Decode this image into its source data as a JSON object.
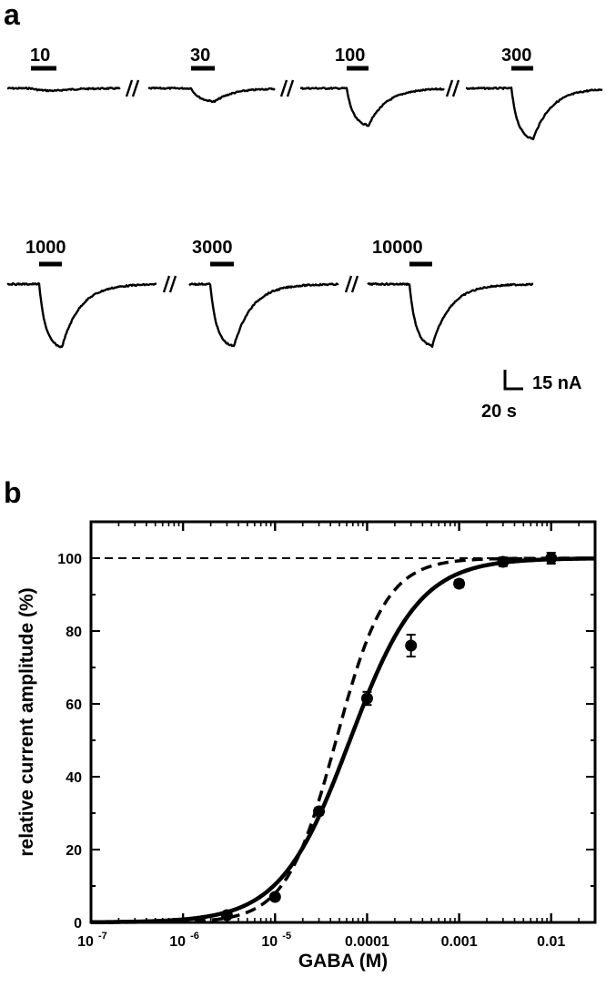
{
  "panel_a": {
    "label": "a",
    "concentrations": [
      "10",
      "30",
      "100",
      "300",
      "1000",
      "3000",
      "10000"
    ],
    "peak_amplitude_nA": [
      2,
      11,
      30,
      41,
      51,
      50,
      50
    ],
    "scale_bar": {
      "current_label": "15 nA",
      "time_label": "20 s"
    }
  },
  "panel_b": {
    "label": "b",
    "chart_data": {
      "type": "scatter",
      "xlabel": "GABA (M)",
      "ylabel": "relative current amplitude (%)",
      "xscale": "log",
      "xlim": [
        1e-07,
        0.03
      ],
      "ylim": [
        0,
        110
      ],
      "x_tick_labels": [
        "10-7",
        "10-6",
        "10-5",
        "0.0001",
        "0.001",
        "0.01"
      ],
      "y_tick_labels": [
        "0",
        "20",
        "40",
        "60",
        "80",
        "100"
      ],
      "reference_line_y": 100,
      "series": [
        {
          "style": "points-with-error-bars",
          "x": [
            3e-06,
            1e-05,
            3e-05,
            0.0001,
            0.0003,
            0.001,
            0.003,
            0.01
          ],
          "y": [
            2,
            7,
            30.5,
            61.5,
            76,
            93,
            99,
            100
          ],
          "error": [
            0.5,
            0.8,
            1.0,
            1.8,
            3.0,
            1.0,
            1.2,
            1.5
          ]
        },
        {
          "style": "solid-fit",
          "ec50": 6.5e-05,
          "hill": 1.15
        },
        {
          "style": "dashed-fit",
          "ec50": 4.6e-05,
          "hill": 1.6
        }
      ]
    }
  }
}
